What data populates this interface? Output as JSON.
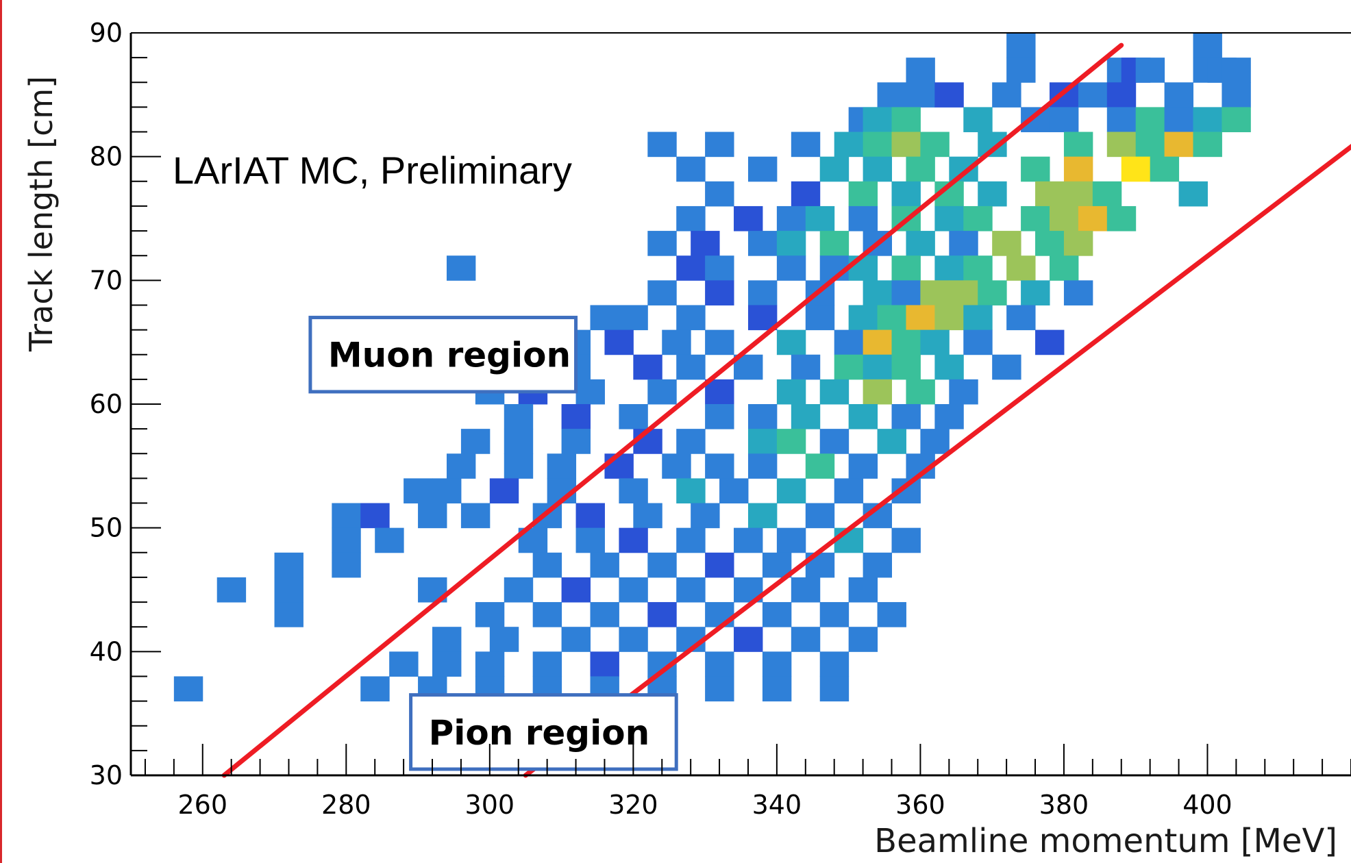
{
  "chart_data": {
    "type": "heatmap",
    "title": "",
    "annotation": "LArIAT MC, Preliminary",
    "xlabel": "Beamline momentum [MeV]",
    "ylabel": "Track length [cm]",
    "xlim": [
      250,
      420
    ],
    "ylim": [
      30,
      90
    ],
    "x_ticks": [
      260,
      280,
      300,
      320,
      340,
      360,
      380,
      400
    ],
    "y_ticks": [
      30,
      40,
      50,
      60,
      70,
      80,
      90
    ],
    "bin_width_x": 4,
    "bin_height_y": 2,
    "colorscale": [
      "#1a2fa0",
      "#2a52d6",
      "#2f80d8",
      "#28a8c0",
      "#3ac09a",
      "#9cc45a",
      "#e8b830",
      "#ffe418"
    ],
    "line_color": "#ee1c24",
    "box_color": "#3f6fbf",
    "regions": [
      {
        "label": "Muon region",
        "x": [
          275,
          312
        ],
        "y": [
          61,
          67
        ]
      },
      {
        "label": "Pion region",
        "x": [
          289,
          326
        ],
        "y": [
          30.5,
          36.5
        ]
      }
    ],
    "cut_lines": [
      {
        "x": [
          263,
          388
        ],
        "y": [
          30,
          89
        ]
      },
      {
        "x": [
          305,
          425
        ],
        "y": [
          30,
          83
        ]
      }
    ],
    "rows": [
      {
        "y": 88,
        "cells": [
          [
            372,
            3
          ],
          [
            398,
            3
          ]
        ]
      },
      {
        "y": 86,
        "cells": [
          [
            358,
            3
          ],
          [
            372,
            3
          ],
          [
            386,
            3
          ],
          [
            388,
            2
          ],
          [
            390,
            3
          ],
          [
            398,
            3
          ],
          [
            400,
            3
          ],
          [
            402,
            3
          ]
        ]
      },
      {
        "y": 84,
        "cells": [
          [
            354,
            3
          ],
          [
            358,
            3
          ],
          [
            362,
            2
          ],
          [
            370,
            3
          ],
          [
            378,
            2
          ],
          [
            382,
            3
          ],
          [
            386,
            2
          ],
          [
            394,
            3
          ],
          [
            402,
            3
          ]
        ]
      },
      {
        "y": 82,
        "cells": [
          [
            350,
            3
          ],
          [
            352,
            4
          ],
          [
            356,
            5
          ],
          [
            366,
            4
          ],
          [
            374,
            3
          ],
          [
            378,
            3
          ],
          [
            386,
            3
          ],
          [
            390,
            5
          ],
          [
            394,
            3
          ],
          [
            398,
            4
          ],
          [
            402,
            5
          ]
        ]
      },
      {
        "y": 80,
        "cells": [
          [
            322,
            3
          ],
          [
            330,
            3
          ],
          [
            342,
            3
          ],
          [
            348,
            4
          ],
          [
            352,
            5
          ],
          [
            356,
            6
          ],
          [
            360,
            5
          ],
          [
            368,
            4
          ],
          [
            380,
            5
          ],
          [
            386,
            6
          ],
          [
            390,
            5
          ],
          [
            394,
            7
          ],
          [
            398,
            5
          ]
        ]
      },
      {
        "y": 78,
        "cells": [
          [
            326,
            3
          ],
          [
            336,
            3
          ],
          [
            346,
            4
          ],
          [
            352,
            4
          ],
          [
            358,
            5
          ],
          [
            364,
            4
          ],
          [
            374,
            5
          ],
          [
            380,
            7
          ],
          [
            388,
            8
          ],
          [
            392,
            5
          ]
        ]
      },
      {
        "y": 76,
        "cells": [
          [
            330,
            3
          ],
          [
            342,
            2
          ],
          [
            350,
            5
          ],
          [
            356,
            4
          ],
          [
            362,
            5
          ],
          [
            368,
            4
          ],
          [
            376,
            6
          ],
          [
            380,
            6
          ],
          [
            384,
            5
          ],
          [
            396,
            4
          ]
        ]
      },
      {
        "y": 74,
        "cells": [
          [
            326,
            3
          ],
          [
            334,
            2
          ],
          [
            340,
            3
          ],
          [
            344,
            4
          ],
          [
            350,
            3
          ],
          [
            356,
            5
          ],
          [
            362,
            4
          ],
          [
            366,
            5
          ],
          [
            374,
            5
          ],
          [
            378,
            6
          ],
          [
            382,
            7
          ],
          [
            386,
            5
          ]
        ]
      },
      {
        "y": 72,
        "cells": [
          [
            322,
            3
          ],
          [
            328,
            2
          ],
          [
            336,
            3
          ],
          [
            340,
            4
          ],
          [
            346,
            5
          ],
          [
            352,
            3
          ],
          [
            358,
            4
          ],
          [
            364,
            3
          ],
          [
            370,
            6
          ],
          [
            376,
            5
          ],
          [
            380,
            6
          ]
        ]
      },
      {
        "y": 70,
        "cells": [
          [
            294,
            3
          ],
          [
            326,
            2
          ],
          [
            330,
            3
          ],
          [
            340,
            3
          ],
          [
            346,
            3
          ],
          [
            350,
            4
          ],
          [
            356,
            5
          ],
          [
            362,
            4
          ],
          [
            366,
            5
          ],
          [
            372,
            6
          ],
          [
            378,
            5
          ]
        ]
      },
      {
        "y": 68,
        "cells": [
          [
            322,
            3
          ],
          [
            330,
            2
          ],
          [
            336,
            3
          ],
          [
            344,
            3
          ],
          [
            352,
            4
          ],
          [
            356,
            3
          ],
          [
            360,
            6
          ],
          [
            364,
            6
          ],
          [
            368,
            5
          ],
          [
            374,
            4
          ],
          [
            380,
            3
          ]
        ]
      },
      {
        "y": 66,
        "cells": [
          [
            314,
            3
          ],
          [
            318,
            3
          ],
          [
            326,
            3
          ],
          [
            336,
            2
          ],
          [
            344,
            3
          ],
          [
            350,
            4
          ],
          [
            354,
            5
          ],
          [
            358,
            7
          ],
          [
            362,
            6
          ],
          [
            366,
            4
          ],
          [
            372,
            3
          ]
        ]
      },
      {
        "y": 64,
        "cells": [
          [
            310,
            3
          ],
          [
            316,
            2
          ],
          [
            324,
            3
          ],
          [
            330,
            3
          ],
          [
            340,
            4
          ],
          [
            348,
            3
          ],
          [
            352,
            7
          ],
          [
            356,
            5
          ],
          [
            360,
            4
          ],
          [
            366,
            3
          ],
          [
            376,
            2
          ]
        ]
      },
      {
        "y": 62,
        "cells": [
          [
            302,
            3
          ],
          [
            310,
            3
          ],
          [
            320,
            2
          ],
          [
            326,
            3
          ],
          [
            334,
            3
          ],
          [
            342,
            3
          ],
          [
            348,
            5
          ],
          [
            352,
            4
          ],
          [
            356,
            5
          ],
          [
            362,
            4
          ],
          [
            370,
            3
          ]
        ]
      },
      {
        "y": 60,
        "cells": [
          [
            298,
            3
          ],
          [
            304,
            2
          ],
          [
            312,
            3
          ],
          [
            322,
            3
          ],
          [
            330,
            2
          ],
          [
            340,
            4
          ],
          [
            346,
            4
          ],
          [
            352,
            6
          ],
          [
            358,
            5
          ],
          [
            364,
            3
          ]
        ]
      },
      {
        "y": 58,
        "cells": [
          [
            302,
            3
          ],
          [
            310,
            2
          ],
          [
            318,
            3
          ],
          [
            330,
            3
          ],
          [
            336,
            3
          ],
          [
            342,
            4
          ],
          [
            350,
            4
          ],
          [
            356,
            3
          ],
          [
            362,
            3
          ]
        ]
      },
      {
        "y": 56,
        "cells": [
          [
            296,
            3
          ],
          [
            302,
            3
          ],
          [
            310,
            3
          ],
          [
            320,
            2
          ],
          [
            326,
            3
          ],
          [
            336,
            4
          ],
          [
            340,
            5
          ],
          [
            346,
            3
          ],
          [
            354,
            4
          ],
          [
            360,
            3
          ]
        ]
      },
      {
        "y": 54,
        "cells": [
          [
            294,
            3
          ],
          [
            302,
            3
          ],
          [
            308,
            3
          ],
          [
            316,
            2
          ],
          [
            324,
            3
          ],
          [
            330,
            3
          ],
          [
            336,
            3
          ],
          [
            344,
            5
          ],
          [
            350,
            3
          ],
          [
            358,
            3
          ]
        ]
      },
      {
        "y": 52,
        "cells": [
          [
            288,
            3
          ],
          [
            292,
            3
          ],
          [
            300,
            2
          ],
          [
            308,
            3
          ],
          [
            318,
            3
          ],
          [
            326,
            4
          ],
          [
            332,
            3
          ],
          [
            340,
            4
          ],
          [
            348,
            3
          ],
          [
            356,
            3
          ]
        ]
      },
      {
        "y": 50,
        "cells": [
          [
            278,
            3
          ],
          [
            282,
            2
          ],
          [
            290,
            3
          ],
          [
            296,
            3
          ],
          [
            306,
            3
          ],
          [
            312,
            2
          ],
          [
            320,
            3
          ],
          [
            328,
            3
          ],
          [
            336,
            4
          ],
          [
            344,
            3
          ],
          [
            352,
            3
          ]
        ]
      },
      {
        "y": 48,
        "cells": [
          [
            278,
            3
          ],
          [
            284,
            3
          ],
          [
            304,
            3
          ],
          [
            312,
            3
          ],
          [
            318,
            2
          ],
          [
            326,
            3
          ],
          [
            334,
            3
          ],
          [
            340,
            3
          ],
          [
            348,
            4
          ],
          [
            356,
            3
          ]
        ]
      },
      {
        "y": 46,
        "cells": [
          [
            270,
            3
          ],
          [
            278,
            3
          ],
          [
            306,
            3
          ],
          [
            314,
            3
          ],
          [
            322,
            3
          ],
          [
            330,
            2
          ],
          [
            338,
            3
          ],
          [
            344,
            3
          ],
          [
            352,
            3
          ]
        ]
      },
      {
        "y": 44,
        "cells": [
          [
            262,
            3
          ],
          [
            270,
            3
          ],
          [
            290,
            3
          ],
          [
            302,
            3
          ],
          [
            310,
            2
          ],
          [
            318,
            3
          ],
          [
            326,
            3
          ],
          [
            334,
            3
          ],
          [
            342,
            3
          ],
          [
            350,
            3
          ]
        ]
      },
      {
        "y": 42,
        "cells": [
          [
            270,
            3
          ],
          [
            298,
            3
          ],
          [
            306,
            3
          ],
          [
            314,
            3
          ],
          [
            322,
            2
          ],
          [
            330,
            3
          ],
          [
            338,
            3
          ],
          [
            346,
            3
          ],
          [
            354,
            3
          ]
        ]
      },
      {
        "y": 40,
        "cells": [
          [
            292,
            3
          ],
          [
            300,
            3
          ],
          [
            310,
            3
          ],
          [
            318,
            3
          ],
          [
            326,
            3
          ],
          [
            334,
            2
          ],
          [
            342,
            3
          ],
          [
            350,
            3
          ]
        ]
      },
      {
        "y": 38,
        "cells": [
          [
            286,
            3
          ],
          [
            292,
            3
          ],
          [
            298,
            3
          ],
          [
            306,
            3
          ],
          [
            314,
            2
          ],
          [
            322,
            3
          ],
          [
            330,
            3
          ],
          [
            338,
            3
          ],
          [
            346,
            3
          ]
        ]
      },
      {
        "y": 36,
        "cells": [
          [
            256,
            3
          ],
          [
            282,
            3
          ],
          [
            290,
            3
          ],
          [
            298,
            3
          ],
          [
            306,
            3
          ],
          [
            314,
            3
          ],
          [
            322,
            3
          ],
          [
            330,
            3
          ],
          [
            338,
            3
          ],
          [
            346,
            3
          ]
        ]
      }
    ]
  }
}
